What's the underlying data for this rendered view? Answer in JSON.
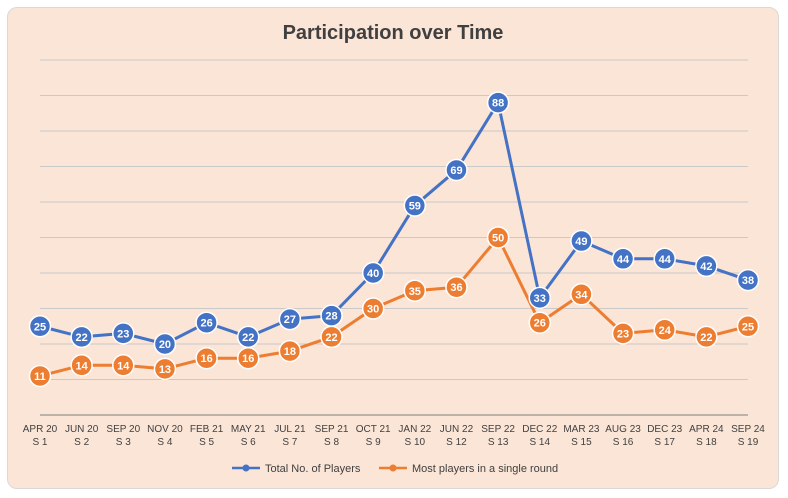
{
  "chart_data": {
    "type": "line",
    "title": "Participation over Time",
    "xlabel": "",
    "ylabel": "",
    "ylim": [
      0,
      100
    ],
    "grid": true,
    "legend_position": "bottom",
    "categories": [
      [
        "APR 20",
        "S 1"
      ],
      [
        "JUN 20",
        "S 2"
      ],
      [
        "SEP 20",
        "S 3"
      ],
      [
        "NOV 20",
        "S 4"
      ],
      [
        "FEB 21",
        "S 5"
      ],
      [
        "MAY 21",
        "S 6"
      ],
      [
        "JUL 21",
        "S 7"
      ],
      [
        "SEP 21",
        "S 8"
      ],
      [
        "OCT 21",
        "S 9"
      ],
      [
        "JAN 22",
        "S 10"
      ],
      [
        "JUN 22",
        "S 12"
      ],
      [
        "SEP 22",
        "S 13"
      ],
      [
        "DEC 22",
        "S 14"
      ],
      [
        "MAR 23",
        "S 15"
      ],
      [
        "AUG 23",
        "S 16"
      ],
      [
        "DEC 23",
        "S 17"
      ],
      [
        "APR 24",
        "S 18"
      ],
      [
        "SEP 24",
        "S 19"
      ]
    ],
    "series": [
      {
        "name": "Total No. of Players",
        "color": "#4472c4",
        "values": [
          25,
          22,
          23,
          20,
          26,
          22,
          27,
          28,
          40,
          59,
          69,
          88,
          33,
          49,
          44,
          44,
          42,
          38
        ]
      },
      {
        "name": "Most players in a single round",
        "color": "#ed7d31",
        "values": [
          11,
          14,
          14,
          13,
          16,
          16,
          18,
          22,
          30,
          35,
          36,
          50,
          26,
          34,
          23,
          24,
          22,
          25
        ]
      }
    ]
  }
}
